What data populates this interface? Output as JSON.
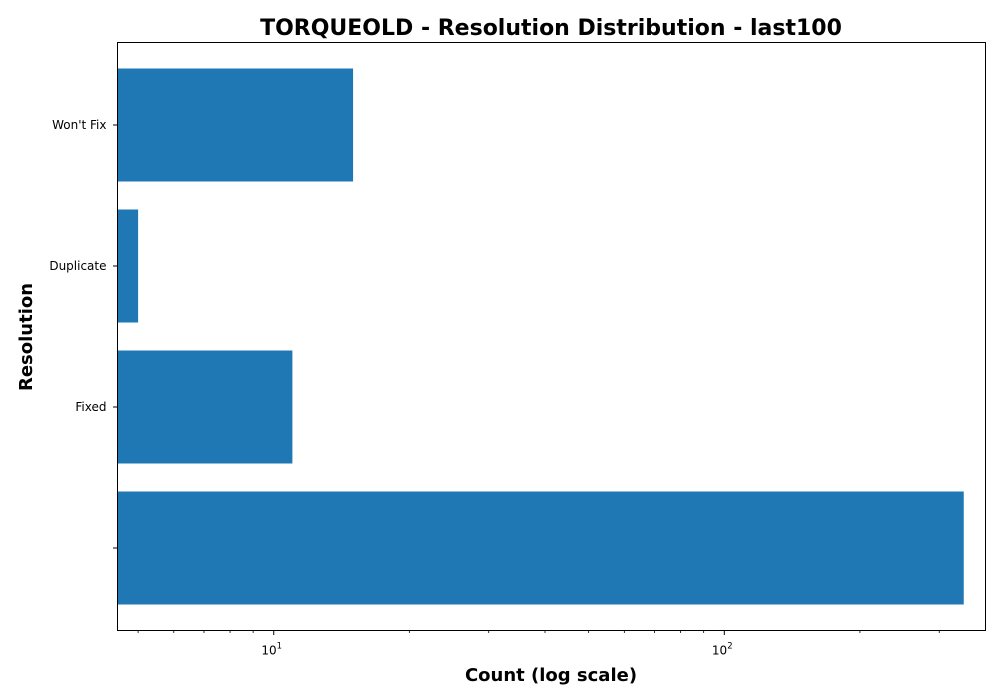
{
  "chart_data": {
    "type": "bar",
    "orientation": "horizontal",
    "title": "TORQUEOLD - Resolution Distribution - last100",
    "xlabel": "Count (log scale)",
    "ylabel": "Resolution",
    "x_scale": "log",
    "xlim": [
      4.5,
      380
    ],
    "x_ticks": [
      {
        "value": 10,
        "base": "10",
        "exp": "1"
      },
      {
        "value": 100,
        "base": "10",
        "exp": "2"
      }
    ],
    "categories": [
      "",
      "Fixed",
      "Duplicate",
      "Won't Fix"
    ],
    "values": [
      340,
      11,
      5,
      15
    ],
    "bar_color": "#1f77b4",
    "grid": false,
    "legend": "none"
  }
}
